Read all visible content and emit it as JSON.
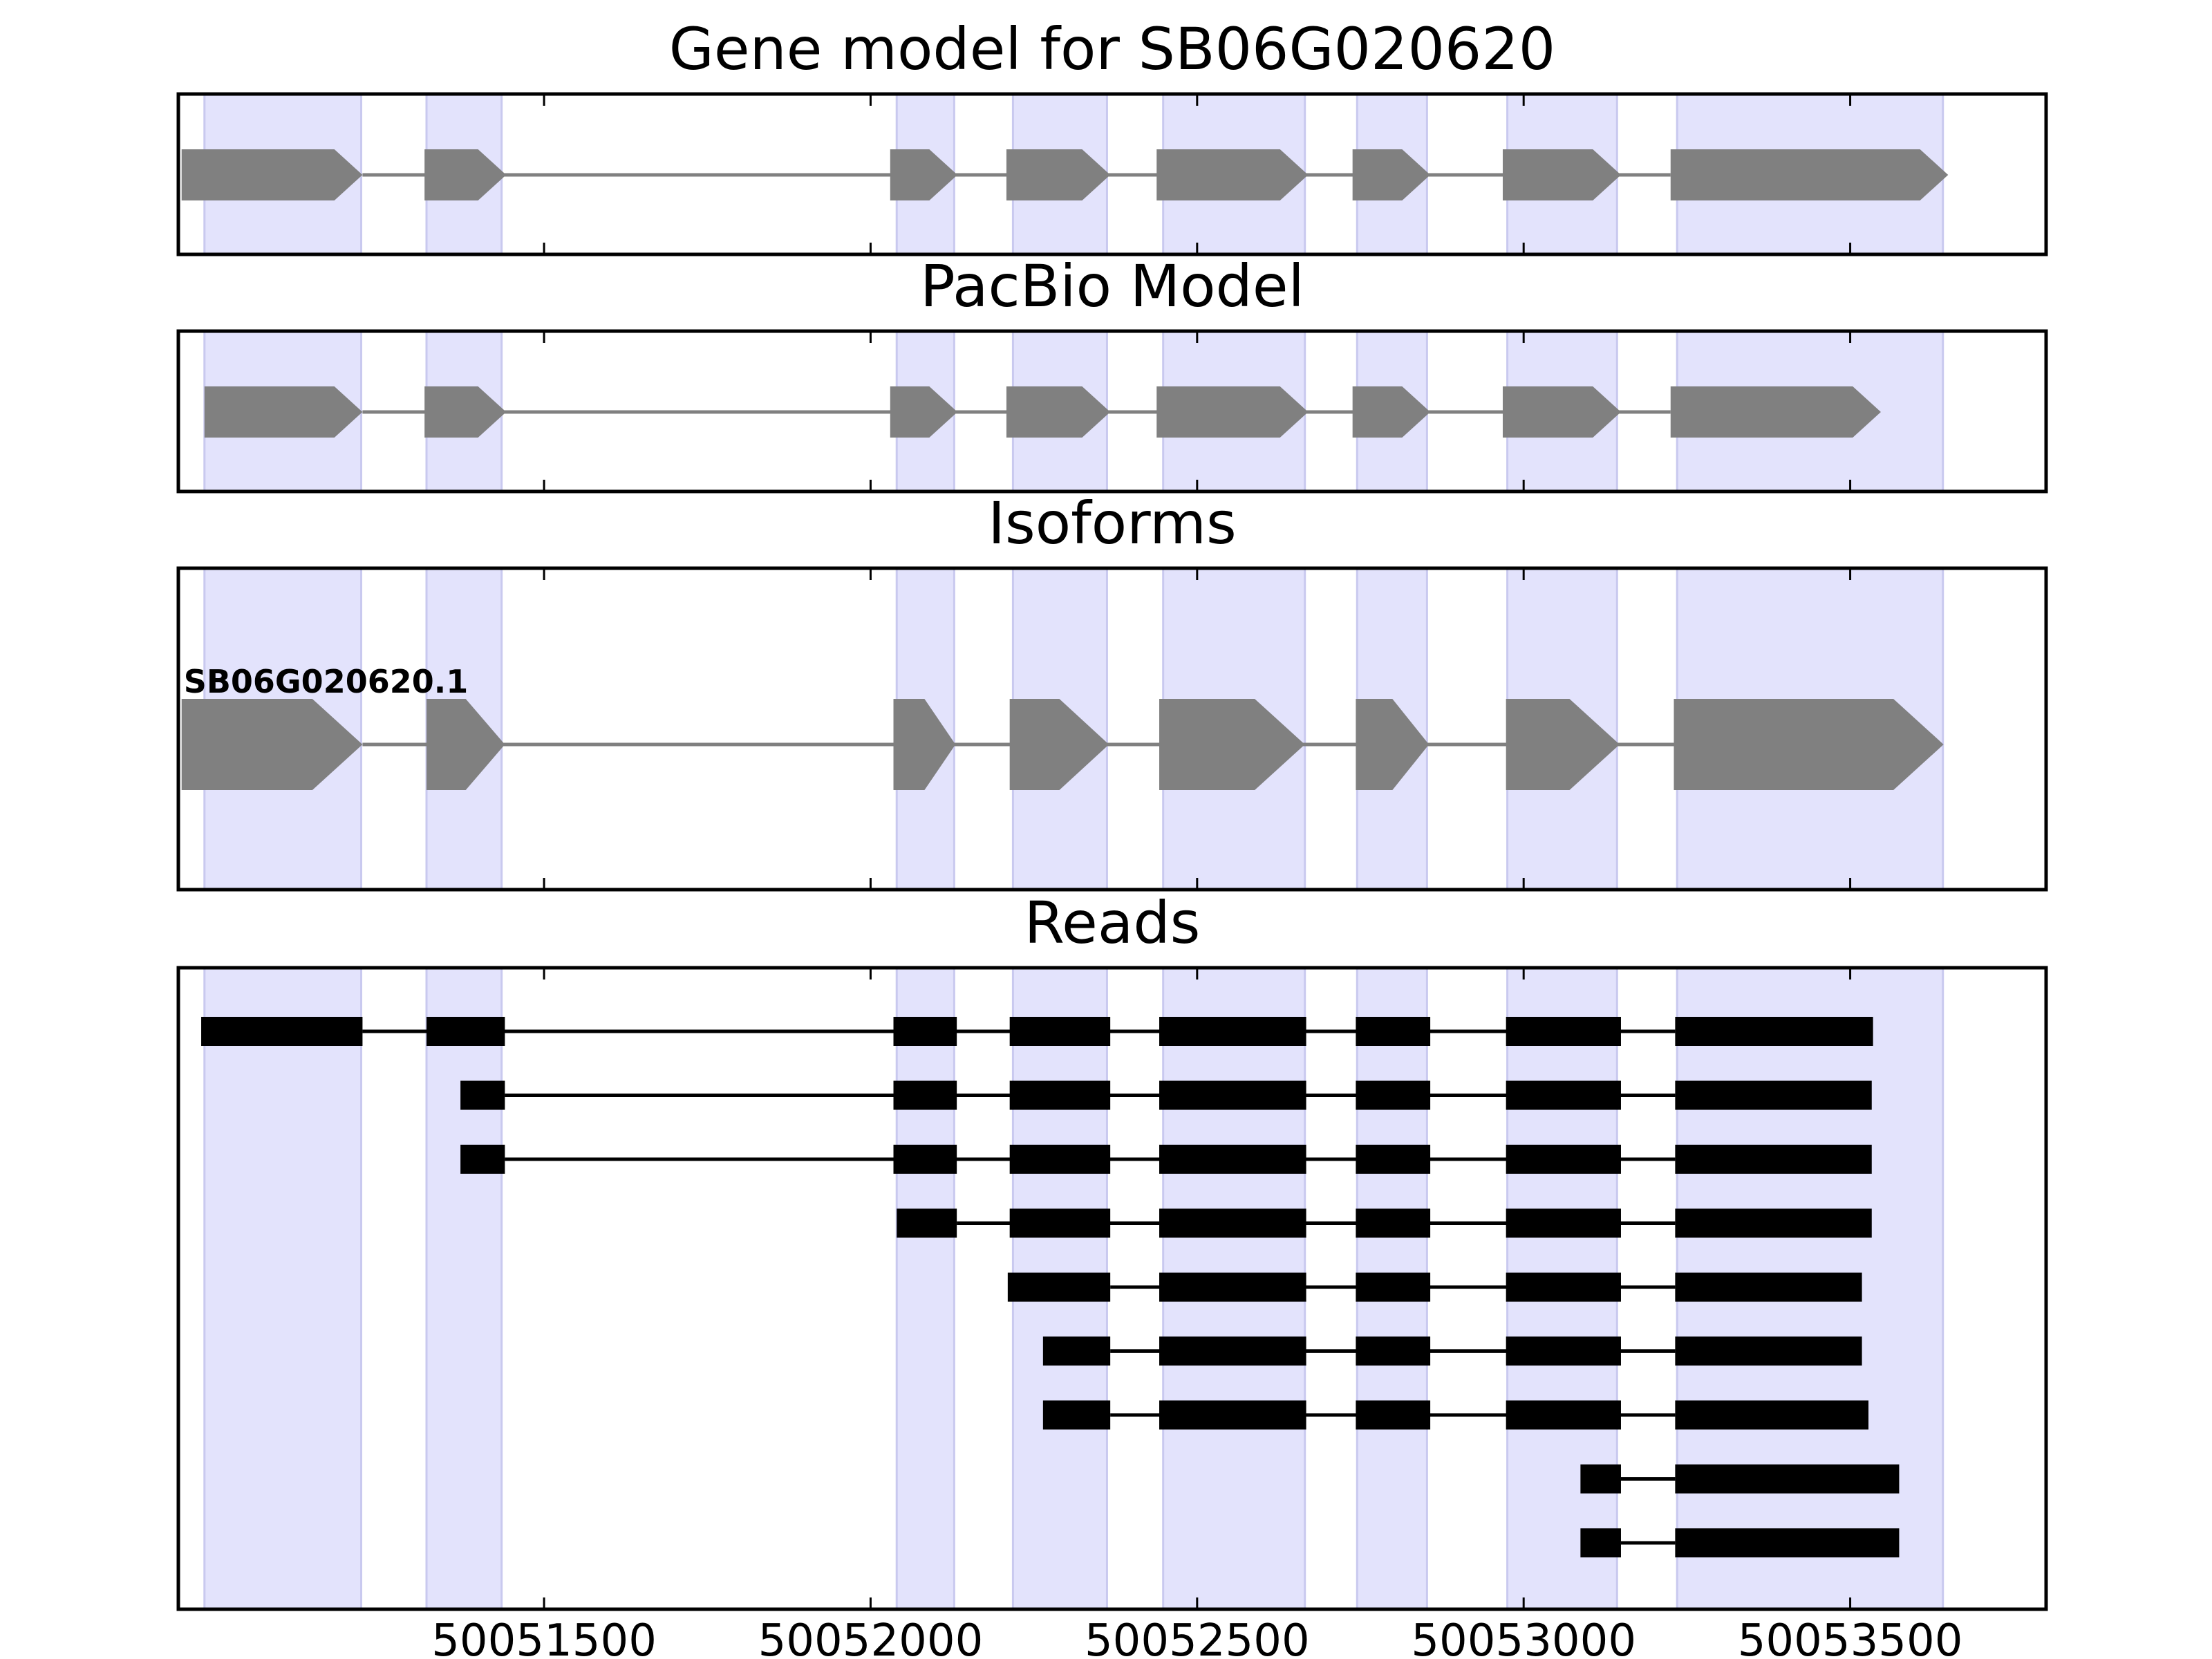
{
  "chart_data": {
    "type": "gene-track",
    "x_unit": "genomic position (bp)",
    "xlim": [
      50050940,
      50053800
    ],
    "xticks": [
      50051500,
      50052000,
      50052500,
      50053000,
      50053500
    ],
    "xtick_labels": [
      "50051500",
      "50052000",
      "50052500",
      "50053000",
      "50053500"
    ],
    "exon_regions": [
      [
        50050980,
        50051220
      ],
      [
        50051320,
        50051435
      ],
      [
        50052040,
        50052128
      ],
      [
        50052218,
        50052362
      ],
      [
        50052448,
        50052665
      ],
      [
        50052745,
        50052852
      ],
      [
        50052975,
        50053143
      ],
      [
        50053235,
        50053642
      ]
    ],
    "colors": {
      "highlight": "#e3e3fc",
      "highlight_edge": "#c9c9ef",
      "model_exon": "#808080",
      "model_intron": "#808080",
      "read": "#000000",
      "frame": "#000000"
    },
    "panels": [
      {
        "title": "Gene model for SB06G020620",
        "strand": "+",
        "exons": [
          [
            50050945,
            50051222
          ],
          [
            50051317,
            50051442
          ],
          [
            50052030,
            50052133
          ],
          [
            50052208,
            50052367
          ],
          [
            50052438,
            50052670
          ],
          [
            50052738,
            50052857
          ],
          [
            50052968,
            50053149
          ],
          [
            50053225,
            50053650
          ]
        ]
      },
      {
        "title": "PacBio Model",
        "strand": "+",
        "exons": [
          [
            50050980,
            50051222
          ],
          [
            50051317,
            50051442
          ],
          [
            50052030,
            50052133
          ],
          [
            50052208,
            50052367
          ],
          [
            50052438,
            50052670
          ],
          [
            50052738,
            50052857
          ],
          [
            50052968,
            50053149
          ],
          [
            50053225,
            50053547
          ]
        ]
      },
      {
        "title": "Isoforms",
        "strand": "+",
        "isoform_label": "SB06G020620.1",
        "exons": [
          [
            50050945,
            50051222
          ],
          [
            50051320,
            50051440
          ],
          [
            50052035,
            50052130
          ],
          [
            50052213,
            50052365
          ],
          [
            50052442,
            50052665
          ],
          [
            50052743,
            50052855
          ],
          [
            50052973,
            50053147
          ],
          [
            50053230,
            50053643
          ]
        ]
      },
      {
        "title": "Reads",
        "reads": [
          [
            [
              50050975,
              50051222
            ],
            [
              50051320,
              50051440
            ],
            [
              50052035,
              50052132
            ],
            [
              50052213,
              50052367
            ],
            [
              50052442,
              50052667
            ],
            [
              50052743,
              50052857
            ],
            [
              50052973,
              50053149
            ],
            [
              50053232,
              50053535
            ]
          ],
          [
            [
              50051372,
              50051440
            ],
            [
              50052035,
              50052132
            ],
            [
              50052213,
              50052367
            ],
            [
              50052442,
              50052667
            ],
            [
              50052743,
              50052857
            ],
            [
              50052973,
              50053149
            ],
            [
              50053232,
              50053533
            ]
          ],
          [
            [
              50051372,
              50051440
            ],
            [
              50052035,
              50052132
            ],
            [
              50052213,
              50052367
            ],
            [
              50052442,
              50052667
            ],
            [
              50052743,
              50052857
            ],
            [
              50052973,
              50053149
            ],
            [
              50053232,
              50053533
            ]
          ],
          [
            [
              50052040,
              50052132
            ],
            [
              50052213,
              50052367
            ],
            [
              50052442,
              50052667
            ],
            [
              50052743,
              50052857
            ],
            [
              50052973,
              50053149
            ],
            [
              50053232,
              50053533
            ]
          ],
          [
            [
              50052210,
              50052367
            ],
            [
              50052442,
              50052667
            ],
            [
              50052743,
              50052857
            ],
            [
              50052973,
              50053149
            ],
            [
              50053232,
              50053518
            ]
          ],
          [
            [
              50052264,
              50052367
            ],
            [
              50052442,
              50052667
            ],
            [
              50052743,
              50052857
            ],
            [
              50052973,
              50053149
            ],
            [
              50053232,
              50053518
            ]
          ],
          [
            [
              50052264,
              50052367
            ],
            [
              50052442,
              50052667
            ],
            [
              50052743,
              50052857
            ],
            [
              50052973,
              50053149
            ],
            [
              50053232,
              50053528
            ]
          ],
          [
            [
              50053087,
              50053149
            ],
            [
              50053232,
              50053575
            ]
          ],
          [
            [
              50053087,
              50053149
            ],
            [
              50053232,
              50053575
            ]
          ]
        ]
      }
    ]
  }
}
